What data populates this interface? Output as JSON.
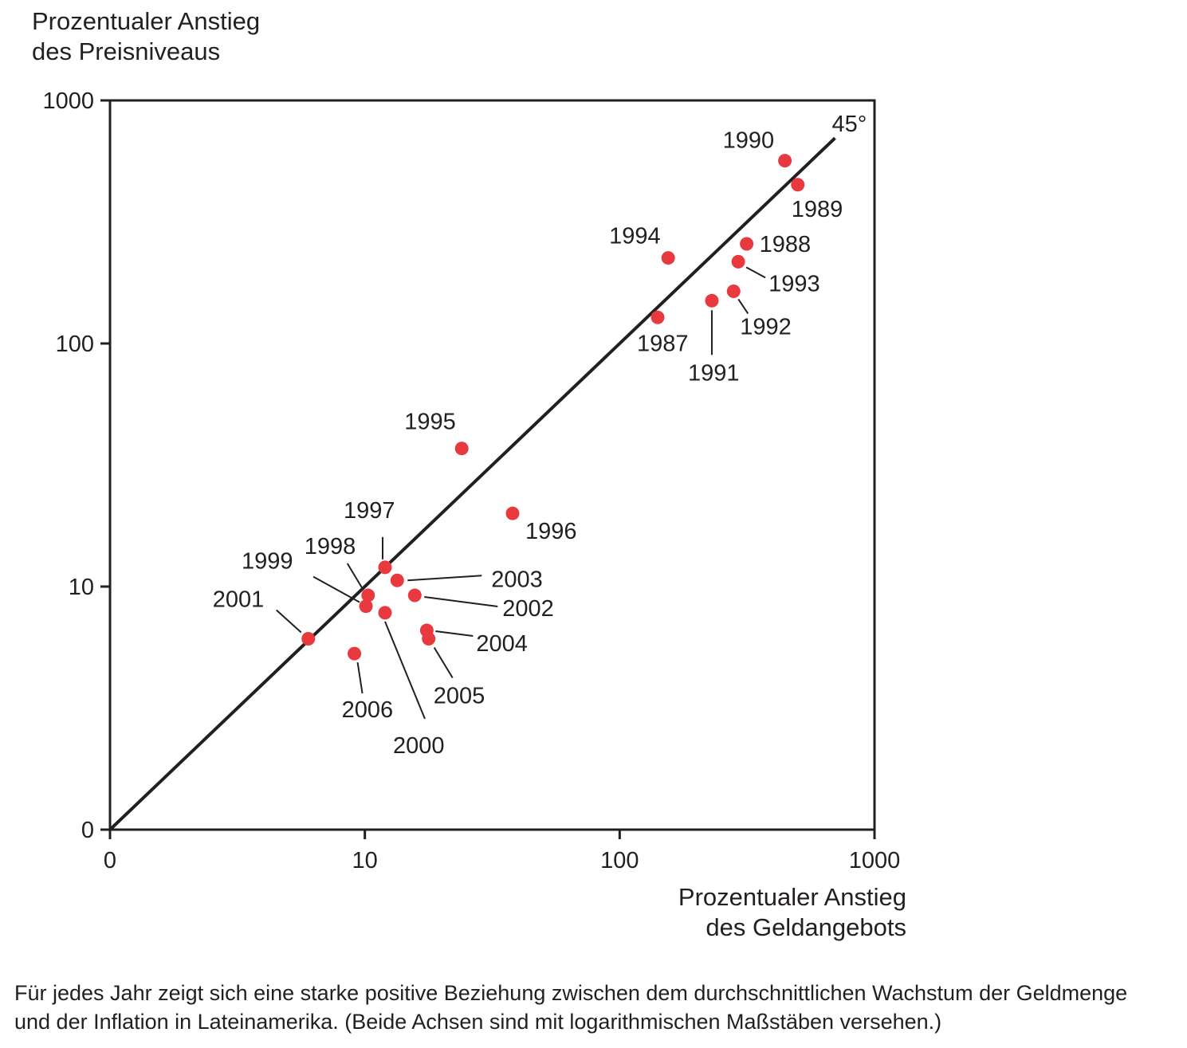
{
  "chart_data": {
    "type": "scatter",
    "ylabel_lines": [
      "Prozentualer Anstieg",
      "des Preisniveaus"
    ],
    "xlabel_lines": [
      "Prozentualer Anstieg",
      "des Geldangebots"
    ],
    "x_scale": "log",
    "y_scale": "log",
    "xlim": [
      1,
      1000
    ],
    "ylim": [
      1,
      1000
    ],
    "x_ticks": [
      {
        "value": 1,
        "label": "0"
      },
      {
        "value": 10,
        "label": "10"
      },
      {
        "value": 100,
        "label": "100"
      },
      {
        "value": 1000,
        "label": "1000"
      }
    ],
    "y_ticks": [
      {
        "value": 1,
        "label": "0"
      },
      {
        "value": 10,
        "label": "10"
      },
      {
        "value": 100,
        "label": "100"
      },
      {
        "value": 1000,
        "label": "1000"
      }
    ],
    "reference_line": {
      "label": "45°",
      "from": [
        1,
        1
      ],
      "to": [
        700,
        700
      ]
    },
    "point_color": "#e8393f",
    "points": [
      {
        "year": "1987",
        "x": 141,
        "y": 128
      },
      {
        "year": "1988",
        "x": 315,
        "y": 257
      },
      {
        "year": "1989",
        "x": 500,
        "y": 450
      },
      {
        "year": "1990",
        "x": 445,
        "y": 565
      },
      {
        "year": "1991",
        "x": 230,
        "y": 150
      },
      {
        "year": "1992",
        "x": 280,
        "y": 164
      },
      {
        "year": "1993",
        "x": 292,
        "y": 217
      },
      {
        "year": "1994",
        "x": 155,
        "y": 225
      },
      {
        "year": "1995",
        "x": 24,
        "y": 37
      },
      {
        "year": "1996",
        "x": 38,
        "y": 20
      },
      {
        "year": "1997",
        "x": 12,
        "y": 12
      },
      {
        "year": "1998",
        "x": 10.3,
        "y": 9.2
      },
      {
        "year": "1999",
        "x": 10.1,
        "y": 8.3
      },
      {
        "year": "2000",
        "x": 12,
        "y": 7.8
      },
      {
        "year": "2001",
        "x": 6,
        "y": 6.1
      },
      {
        "year": "2002",
        "x": 15.7,
        "y": 9.2
      },
      {
        "year": "2003",
        "x": 13.4,
        "y": 10.6
      },
      {
        "year": "2004",
        "x": 17.5,
        "y": 6.6
      },
      {
        "year": "2005",
        "x": 17.8,
        "y": 6.1
      },
      {
        "year": "2006",
        "x": 9.1,
        "y": 5.3
      }
    ]
  },
  "caption_lines": [
    "Für jedes Jahr zeigt sich eine starke positive Beziehung zwischen dem durchschnittlichen Wachstum der Geldmenge",
    "und der Inflation in Lateinamerika. (Beide Achsen sind mit logarithmischen Maßstäben versehen.)"
  ]
}
